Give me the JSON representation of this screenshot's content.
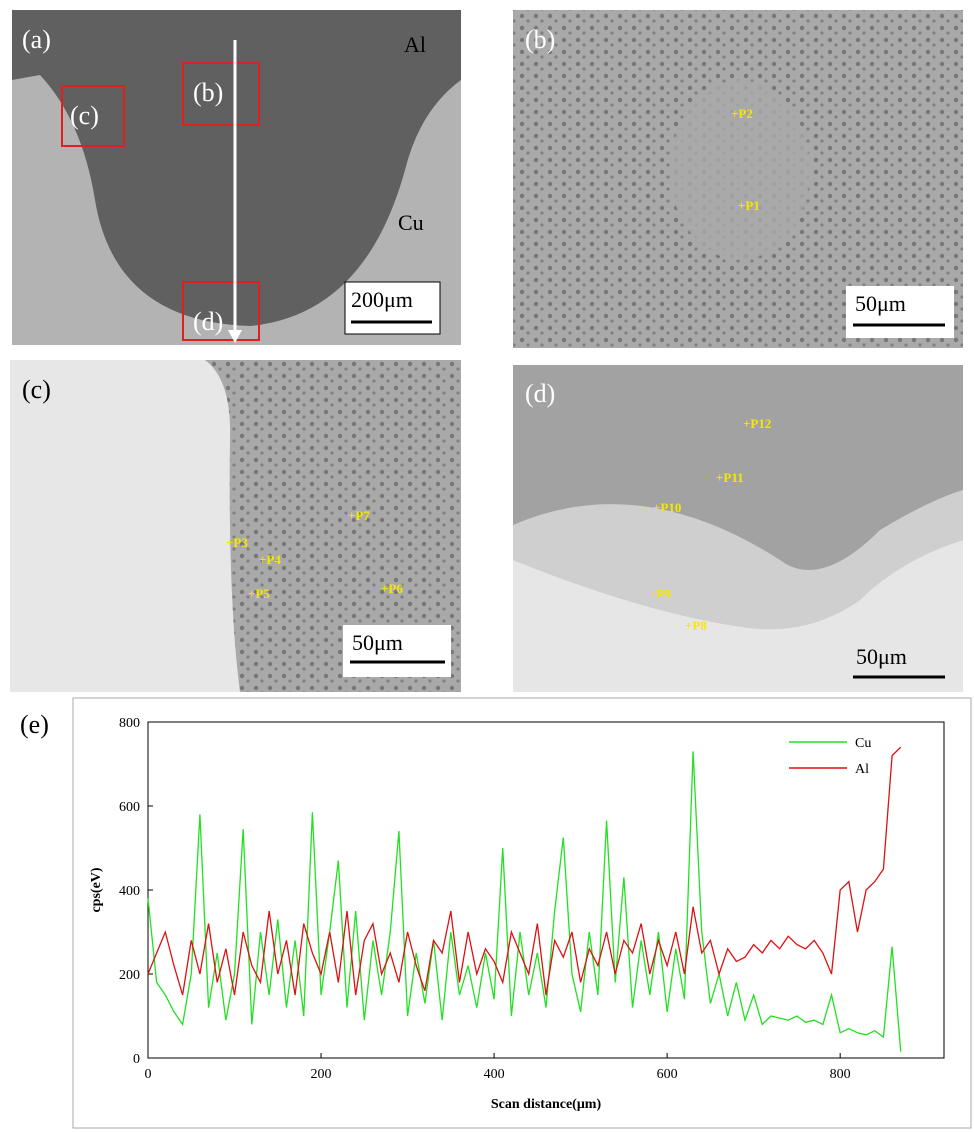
{
  "panels": [
    {
      "label": "(a)",
      "texts": [
        "Al",
        "Cu"
      ],
      "boxes": [
        "(c)",
        "(b)",
        "(d)"
      ],
      "scale": "200μm"
    },
    {
      "label": "(b)",
      "points": [
        "+P2",
        "+P1"
      ],
      "scale": "50μm"
    },
    {
      "label": "(c)",
      "points": [
        "+P7",
        "+P3",
        "+P4",
        "+P5",
        "+P6"
      ],
      "scale": "50μm"
    },
    {
      "label": "(d)",
      "points": [
        "+P12",
        "+P11",
        "+P10",
        "+P9",
        "+P8"
      ],
      "scale": "50μm"
    }
  ],
  "chart_data": {
    "type": "line",
    "label": "(e)",
    "x_label": "Scan distance(μm)",
    "y_label": "cps(eV)",
    "x": [
      0,
      10,
      20,
      30,
      40,
      50,
      60,
      70,
      80,
      90,
      100,
      110,
      120,
      130,
      140,
      150,
      160,
      170,
      180,
      190,
      200,
      210,
      220,
      230,
      240,
      250,
      260,
      270,
      280,
      290,
      300,
      310,
      320,
      330,
      340,
      350,
      360,
      370,
      380,
      390,
      400,
      410,
      420,
      430,
      440,
      450,
      460,
      470,
      480,
      490,
      500,
      510,
      520,
      530,
      540,
      550,
      560,
      570,
      580,
      590,
      600,
      610,
      620,
      630,
      640,
      650,
      660,
      670,
      680,
      690,
      700,
      710,
      720,
      730,
      740,
      750,
      760,
      770,
      780,
      790,
      800,
      810,
      820,
      830,
      840,
      850,
      860,
      870
    ],
    "series": [
      {
        "name": "Cu",
        "color": "#22e022",
        "values": [
          380,
          180,
          150,
          110,
          80,
          200,
          580,
          120,
          250,
          90,
          200,
          545,
          80,
          300,
          150,
          330,
          120,
          280,
          100,
          585,
          150,
          300,
          470,
          120,
          350,
          90,
          280,
          150,
          300,
          540,
          100,
          250,
          130,
          280,
          90,
          300,
          150,
          220,
          120,
          250,
          140,
          500,
          100,
          300,
          150,
          250,
          120,
          350,
          525,
          200,
          110,
          300,
          150,
          565,
          180,
          430,
          120,
          280,
          150,
          300,
          110,
          260,
          140,
          730,
          300,
          130,
          200,
          100,
          180,
          90,
          150,
          80,
          100,
          95,
          90,
          100,
          85,
          90,
          80,
          150,
          60,
          70,
          60,
          55,
          65,
          50,
          265,
          15
        ]
      },
      {
        "name": "Al",
        "color": "#dd1111",
        "values": [
          200,
          250,
          300,
          220,
          150,
          280,
          200,
          320,
          180,
          260,
          150,
          300,
          220,
          180,
          350,
          200,
          280,
          150,
          320,
          250,
          200,
          300,
          180,
          350,
          150,
          280,
          320,
          200,
          250,
          180,
          300,
          220,
          160,
          280,
          250,
          350,
          180,
          300,
          200,
          260,
          230,
          180,
          300,
          250,
          200,
          320,
          150,
          280,
          240,
          300,
          180,
          260,
          220,
          300,
          200,
          280,
          250,
          320,
          200,
          280,
          220,
          300,
          200,
          360,
          250,
          280,
          200,
          260,
          230,
          240,
          270,
          250,
          280,
          260,
          290,
          270,
          260,
          280,
          250,
          200,
          400,
          420,
          300,
          400,
          420,
          450,
          720,
          740
        ]
      }
    ],
    "xlim": [
      0,
      920
    ],
    "ylim": [
      0,
      800
    ],
    "xticks": [
      0,
      200,
      400,
      600,
      800
    ],
    "yticks": [
      0,
      200,
      400,
      600,
      800
    ],
    "legend": "upper right"
  }
}
